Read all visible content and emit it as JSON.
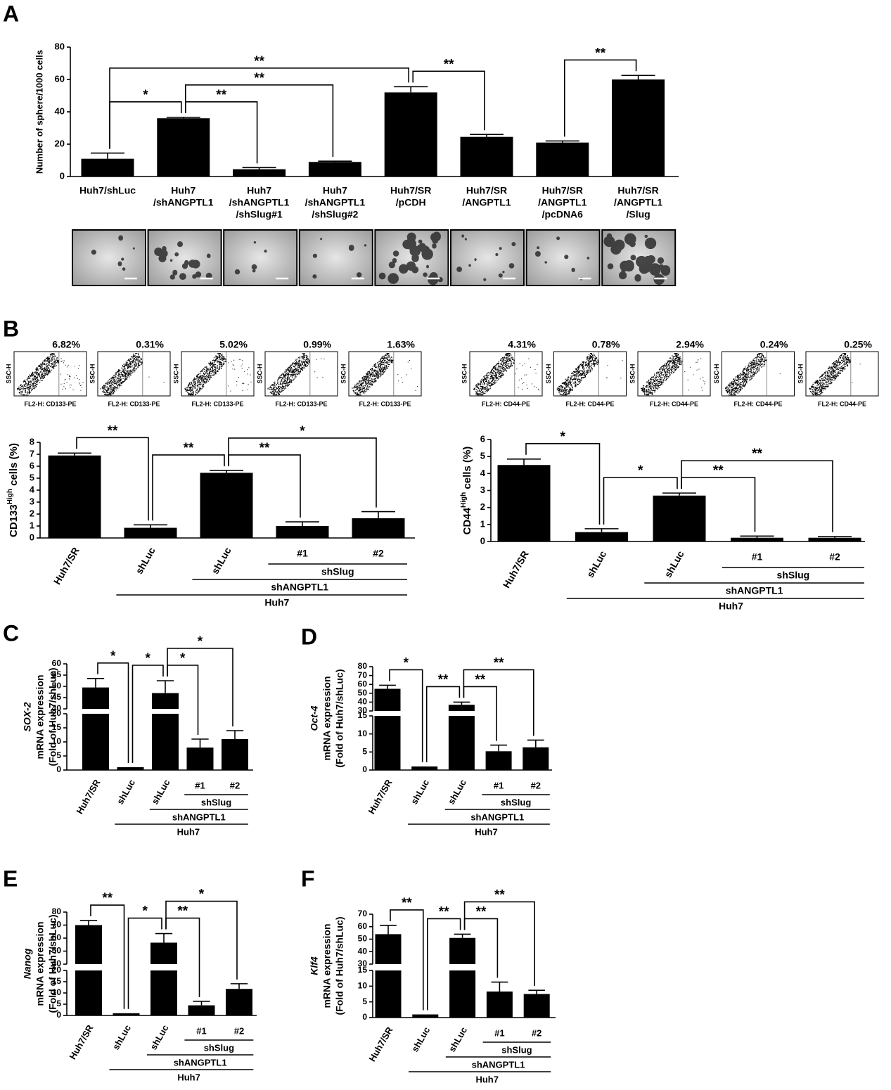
{
  "chart_data": [
    {
      "type": "bar",
      "panel": "A",
      "ylabel": "Number of sphere/1000 cells",
      "categories": [
        [
          "Huh7/shLuc"
        ],
        [
          "Huh7",
          "/shANGPTL1"
        ],
        [
          "Huh7",
          "/shANGPTL1",
          "/shSlug#1"
        ],
        [
          "Huh7",
          "/shANGPTL1",
          "/shSlug#2"
        ],
        [
          "Huh7/SR",
          "/pCDH"
        ],
        [
          "Huh7/SR",
          "/ANGPTL1"
        ],
        [
          "Huh7/SR",
          "/ANGPTL1",
          "/pcDNA6"
        ],
        [
          "Huh7/SR",
          "/ANGPTL1",
          "/Slug"
        ]
      ],
      "values": [
        11,
        36,
        4.5,
        9,
        52,
        24.5,
        21,
        60
      ],
      "errors": [
        3.5,
        0.6,
        1,
        0.5,
        3.5,
        1.5,
        1,
        2.5
      ],
      "ylim": [
        0,
        80
      ],
      "yticks": [
        0,
        20,
        40,
        60,
        80
      ],
      "color": "#000000",
      "significance": [
        {
          "from": 0,
          "to": 1,
          "label": "*"
        },
        {
          "from": 1,
          "to": 2,
          "label": "**"
        },
        {
          "from": 1,
          "to": 3,
          "label": "**"
        },
        {
          "from": 0,
          "to": 4,
          "label": "**"
        },
        {
          "from": 4,
          "to": 5,
          "label": "**"
        },
        {
          "from": 6,
          "to": 7,
          "label": "**"
        }
      ]
    },
    {
      "type": "bar",
      "panel": "B",
      "ylabel_parts": [
        "CD133",
        "High",
        " cells (%)"
      ],
      "flow": {
        "ylabel": "SSC-H",
        "xlabel": "FL2-H: CD133-PE",
        "values": [
          6.82,
          0.31,
          5.02,
          0.99,
          1.63
        ],
        "value_labels": [
          "6.82%",
          "0.31%",
          "5.02%",
          "0.99%",
          "1.63%"
        ]
      },
      "categories": [
        "Huh7/SR",
        "shLuc",
        "shLuc",
        "#1",
        "#2"
      ],
      "values": [
        6.9,
        0.85,
        5.45,
        1.0,
        1.65
      ],
      "errors": [
        0.2,
        0.25,
        0.2,
        0.35,
        0.55
      ],
      "ylim": [
        0,
        8
      ],
      "yticks": [
        0,
        1,
        2,
        3,
        4,
        5,
        6,
        7,
        8
      ],
      "color": "#000000",
      "groups": [
        {
          "label": "shSlug",
          "from": 3,
          "to": 4
        },
        {
          "label": "shANGPTL1",
          "from": 2,
          "to": 4
        },
        {
          "label": "Huh7",
          "from": 1,
          "to": 4
        }
      ],
      "significance": [
        {
          "from": 0,
          "to": 1,
          "label": "**"
        },
        {
          "from": 1,
          "to": 2,
          "label": "**"
        },
        {
          "from": 2,
          "to": 3,
          "label": "**"
        },
        {
          "from": 2,
          "to": 4,
          "label": "*"
        }
      ]
    },
    {
      "type": "bar",
      "ylabel_parts": [
        "CD44",
        "High",
        " cells (%)"
      ],
      "flow": {
        "ylabel": "SSC-H",
        "xlabel": "FL2-H: CD44-PE",
        "values": [
          4.31,
          0.78,
          2.94,
          0.24,
          0.25
        ],
        "value_labels": [
          "4.31%",
          "0.78%",
          "2.94%",
          "0.24%",
          "0.25%"
        ]
      },
      "categories": [
        "Huh7/SR",
        "shLuc",
        "shLuc",
        "#1",
        "#2"
      ],
      "values": [
        4.5,
        0.55,
        2.7,
        0.22,
        0.22
      ],
      "errors": [
        0.35,
        0.2,
        0.15,
        0.1,
        0.08
      ],
      "ylim": [
        0,
        6
      ],
      "yticks": [
        0,
        1,
        2,
        3,
        4,
        5,
        6
      ],
      "color": "#000000",
      "groups": [
        {
          "label": "shSlug",
          "from": 3,
          "to": 4
        },
        {
          "label": "shANGPTL1",
          "from": 2,
          "to": 4
        },
        {
          "label": "Huh7",
          "from": 1,
          "to": 4
        }
      ],
      "significance": [
        {
          "from": 0,
          "to": 1,
          "label": "*"
        },
        {
          "from": 1,
          "to": 2,
          "label": "*"
        },
        {
          "from": 2,
          "to": 3,
          "label": "**"
        },
        {
          "from": 2,
          "to": 4,
          "label": "**"
        }
      ]
    },
    {
      "type": "bar",
      "panel": "C",
      "ylabel_lines": [
        "SOX-2",
        "mRNA expression",
        "(Fold of Huh7/shLuc)"
      ],
      "categories": [
        "Huh7/SR",
        "shLuc",
        "shLuc",
        "#1",
        "#2"
      ],
      "values": [
        49.5,
        1,
        47,
        8,
        11
      ],
      "errors": [
        4,
        0,
        5.5,
        3,
        3
      ],
      "color": "#000000",
      "axis_segments": [
        {
          "ylim": [
            0,
            20
          ],
          "yticks": [
            0,
            5,
            10,
            15,
            20
          ]
        },
        {
          "ylim": [
            40,
            60
          ],
          "yticks": [
            40,
            45,
            50,
            55,
            60
          ]
        }
      ],
      "groups": [
        {
          "label": "shSlug",
          "from": 3,
          "to": 4
        },
        {
          "label": "shANGPTL1",
          "from": 2,
          "to": 4
        },
        {
          "label": "Huh7",
          "from": 1,
          "to": 4
        }
      ],
      "significance": [
        {
          "from": 0,
          "to": 1,
          "label": "*"
        },
        {
          "from": 1,
          "to": 2,
          "label": "*"
        },
        {
          "from": 2,
          "to": 3,
          "label": "*"
        },
        {
          "from": 2,
          "to": 4,
          "label": "*"
        }
      ]
    },
    {
      "type": "bar",
      "panel": "D",
      "ylabel_lines": [
        "Oct-4",
        "mRNA expression",
        "(Fold of Huh7/shLuc)"
      ],
      "categories": [
        "Huh7/SR",
        "shLuc",
        "shLuc",
        "#1",
        "#2"
      ],
      "values": [
        55,
        1,
        37,
        5.2,
        6.3
      ],
      "errors": [
        4,
        0,
        3,
        1.7,
        2
      ],
      "color": "#000000",
      "axis_segments": [
        {
          "ylim": [
            0,
            15
          ],
          "yticks": [
            0,
            5,
            10,
            15
          ]
        },
        {
          "ylim": [
            30,
            80
          ],
          "yticks": [
            30,
            40,
            50,
            60,
            70,
            80
          ]
        }
      ],
      "groups": [
        {
          "label": "shSlug",
          "from": 3,
          "to": 4
        },
        {
          "label": "shANGPTL1",
          "from": 2,
          "to": 4
        },
        {
          "label": "Huh7",
          "from": 1,
          "to": 4
        }
      ],
      "significance": [
        {
          "from": 0,
          "to": 1,
          "label": "*"
        },
        {
          "from": 1,
          "to": 2,
          "label": "**"
        },
        {
          "from": 2,
          "to": 3,
          "label": "**"
        },
        {
          "from": 2,
          "to": 4,
          "label": "**"
        }
      ]
    },
    {
      "type": "bar",
      "panel": "E",
      "ylabel_lines": [
        "Nanog",
        "mRNA expression",
        "(Fold of Huh7/shLuc)"
      ],
      "categories": [
        "Huh7/SR",
        "shLuc",
        "shLuc",
        "#1",
        "#2"
      ],
      "values": [
        70,
        1,
        56.5,
        4.5,
        11.8
      ],
      "errors": [
        3.5,
        0,
        7,
        1.8,
        2.3
      ],
      "color": "#000000",
      "axis_segments": [
        {
          "ylim": [
            0,
            20
          ],
          "yticks": [
            0,
            5,
            10,
            15,
            20
          ]
        },
        {
          "ylim": [
            40,
            80
          ],
          "yticks": [
            40,
            50,
            60,
            70,
            80
          ]
        }
      ],
      "groups": [
        {
          "label": "shSlug",
          "from": 3,
          "to": 4
        },
        {
          "label": "shANGPTL1",
          "from": 2,
          "to": 4
        },
        {
          "label": "Huh7",
          "from": 1,
          "to": 4
        }
      ],
      "significance": [
        {
          "from": 0,
          "to": 1,
          "label": "**"
        },
        {
          "from": 1,
          "to": 2,
          "label": "*"
        },
        {
          "from": 2,
          "to": 3,
          "label": "**"
        },
        {
          "from": 2,
          "to": 4,
          "label": "*"
        }
      ]
    },
    {
      "type": "bar",
      "panel": "F",
      "ylabel_lines": [
        "Klf4",
        "mRNA expression",
        "(Fold of Huh7/shLuc)"
      ],
      "categories": [
        "Huh7/SR",
        "shLuc",
        "shLuc",
        "#1",
        "#2"
      ],
      "values": [
        54,
        1,
        51,
        8.3,
        7.5
      ],
      "errors": [
        7,
        0,
        3,
        3,
        1.2
      ],
      "color": "#000000",
      "axis_segments": [
        {
          "ylim": [
            0,
            15
          ],
          "yticks": [
            0,
            5,
            10,
            15
          ]
        },
        {
          "ylim": [
            30,
            70
          ],
          "yticks": [
            30,
            40,
            50,
            60,
            70
          ]
        }
      ],
      "groups": [
        {
          "label": "shSlug",
          "from": 3,
          "to": 4
        },
        {
          "label": "shANGPTL1",
          "from": 2,
          "to": 4
        },
        {
          "label": "Huh7",
          "from": 1,
          "to": 4
        }
      ],
      "significance": [
        {
          "from": 0,
          "to": 1,
          "label": "**"
        },
        {
          "from": 1,
          "to": 2,
          "label": "**"
        },
        {
          "from": 2,
          "to": 3,
          "label": "**"
        },
        {
          "from": 2,
          "to": 4,
          "label": "**"
        }
      ]
    }
  ]
}
